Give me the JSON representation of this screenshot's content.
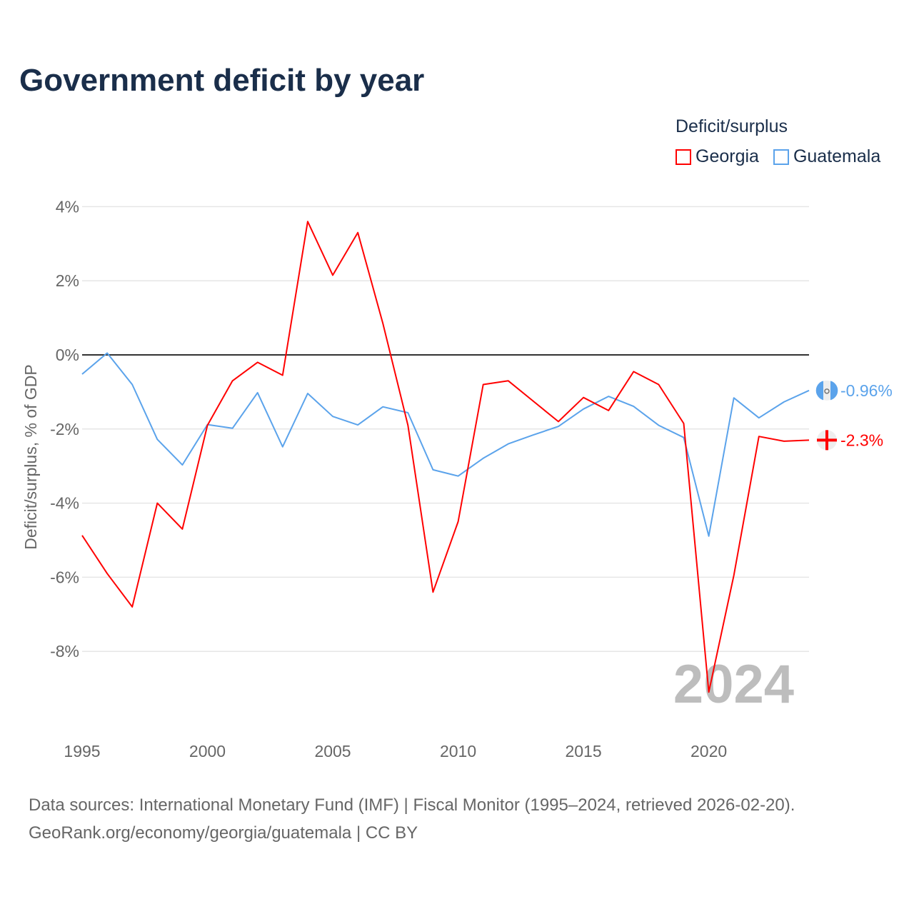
{
  "title": "Government deficit by year",
  "legend": {
    "title": "Deficit/surplus",
    "items": [
      {
        "name": "Georgia",
        "color": "#ff0000"
      },
      {
        "name": "Guatemala",
        "color": "#5ba3eb"
      }
    ]
  },
  "source": {
    "line1": "Data sources: International Monetary Fund (IMF) | Fiscal Monitor (1995–2024, retrieved 2026-02-20).",
    "line2": "GeoRank.org/economy/georgia/guatemala | CC BY"
  },
  "chart_data": {
    "type": "line",
    "title": "Government deficit by year",
    "xlabel": "",
    "ylabel": "Deficit/surplus, % of GDP",
    "x": [
      1995,
      1996,
      1997,
      1998,
      1999,
      2000,
      2001,
      2002,
      2003,
      2004,
      2005,
      2006,
      2007,
      2008,
      2009,
      2010,
      2011,
      2012,
      2013,
      2014,
      2015,
      2016,
      2017,
      2018,
      2019,
      2020,
      2021,
      2022,
      2023,
      2024
    ],
    "xlim": [
      1995,
      2024
    ],
    "ylim": [
      -10,
      4
    ],
    "xticks": [
      1995,
      2000,
      2005,
      2010,
      2015,
      2020
    ],
    "xtick_labels": [
      "1995",
      "2000",
      "2005",
      "2010",
      "2015",
      "2020"
    ],
    "yticks": [
      4,
      2,
      0,
      -2,
      -4,
      -6,
      -8
    ],
    "ytick_labels": [
      "4%",
      "2%",
      "0%",
      "-2%",
      "-4%",
      "-6%",
      "-8%"
    ],
    "watermark": "2024",
    "grid": true,
    "legend_position": "top-right",
    "series": [
      {
        "name": "Georgia",
        "color": "#ff0000",
        "end_label": "-2.3%",
        "values": [
          -4.87,
          -5.9,
          -6.8,
          -4.0,
          -4.7,
          -1.9,
          -0.7,
          -0.2,
          -0.55,
          3.6,
          2.15,
          3.3,
          0.85,
          -1.9,
          -6.4,
          -4.5,
          -0.8,
          -0.7,
          -1.25,
          -1.8,
          -1.15,
          -1.5,
          -0.45,
          -0.8,
          -1.85,
          -9.1,
          -5.95,
          -2.2,
          -2.33,
          -2.3
        ]
      },
      {
        "name": "Guatemala",
        "color": "#5ba3eb",
        "end_label": "-0.96%",
        "values": [
          -0.52,
          0.05,
          -0.8,
          -2.28,
          -2.97,
          -1.88,
          -1.98,
          -1.02,
          -2.48,
          -1.04,
          -1.66,
          -1.89,
          -1.4,
          -1.56,
          -3.1,
          -3.27,
          -2.79,
          -2.4,
          -2.16,
          -1.93,
          -1.46,
          -1.12,
          -1.39,
          -1.9,
          -2.23,
          -4.89,
          -1.16,
          -1.7,
          -1.27,
          -0.96
        ]
      }
    ]
  }
}
